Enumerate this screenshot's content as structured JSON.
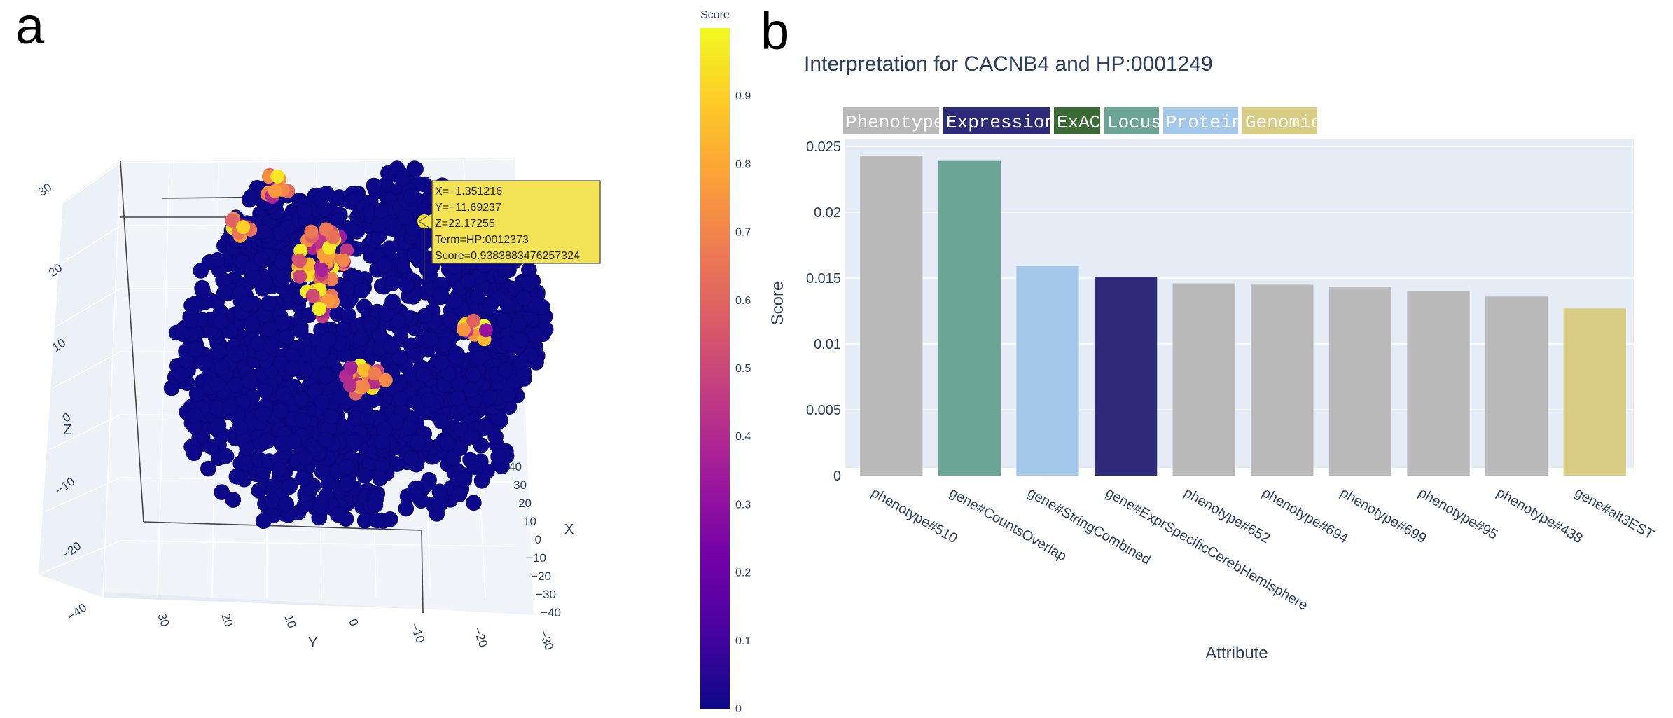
{
  "panel_labels": {
    "a": "a",
    "b": "b"
  },
  "chart_data": [
    {
      "type": "scatter3d",
      "panel": "a",
      "description_axes": {
        "z": {
          "title": "Z",
          "ticks": [
            "30",
            "20",
            "10",
            "0",
            "−10",
            "−20",
            "−40"
          ]
        },
        "y": {
          "title": "Y",
          "ticks": [
            "30",
            "20",
            "10",
            "0",
            "−10",
            "−20",
            "−30"
          ]
        },
        "x": {
          "title": "X",
          "ticks": [
            "40",
            "30",
            "20",
            "10",
            "0",
            "−10",
            "−20",
            "−30",
            "−40"
          ]
        }
      },
      "colorbar": {
        "title": "Score",
        "range": [
          0,
          1
        ],
        "ticks": [
          "0.9",
          "0.8",
          "0.7",
          "0.6",
          "0.5",
          "0.4",
          "0.3",
          "0.2",
          "0.1",
          "0"
        ],
        "colors": [
          "#0d0887",
          "#46039f",
          "#7201a8",
          "#9c179e",
          "#bd3786",
          "#d8576b",
          "#ed7953",
          "#fb9f3a",
          "#fdca26",
          "#f0f921"
        ]
      },
      "hover": {
        "lines": [
          "X=−1.351216",
          "Y=−11.69237",
          "Z=22.17255",
          "Term=HP:0012373",
          "Score=0.9383883476257324"
        ]
      }
    },
    {
      "type": "bar",
      "panel": "b",
      "title": "Interpretation for CACNB4 and HP:0001249",
      "xlabel": "Attribute",
      "ylabel": "Score",
      "ylim": [
        0,
        0.025
      ],
      "yticks": [
        {
          "value": 0,
          "label": "0"
        },
        {
          "value": 0.005,
          "label": "0.005"
        },
        {
          "value": 0.01,
          "label": "0.01"
        },
        {
          "value": 0.015,
          "label": "0.015"
        },
        {
          "value": 0.02,
          "label": "0.02"
        },
        {
          "value": 0.025,
          "label": "0.025"
        }
      ],
      "grid": true,
      "legend_position": "top-left",
      "legend": [
        {
          "name": "Phenotype",
          "color": "#b9b9b9",
          "text_color": "#ffffff"
        },
        {
          "name": "Expression",
          "color": "#2e2a7a",
          "text_color": "#ffffff"
        },
        {
          "name": "ExAC",
          "color": "#3a6b34",
          "text_color": "#ffffff"
        },
        {
          "name": "Locus",
          "color": "#6ba596",
          "text_color": "#ffffff"
        },
        {
          "name": "Protein",
          "color": "#a3c8e9",
          "text_color": "#ffffff"
        },
        {
          "name": "Genomic",
          "color": "#d9cd84",
          "text_color": "#ffffff"
        }
      ],
      "categories": [
        "phenotype#510",
        "gene#CountsOverlap",
        "gene#StringCombined",
        "gene#ExprSpecificCerebHemisphere",
        "phenotype#652",
        "phenotype#694",
        "phenotype#699",
        "phenotype#95",
        "phenotype#438",
        "gene#alt3EST"
      ],
      "values": [
        0.0243,
        0.0239,
        0.0159,
        0.0151,
        0.0146,
        0.0145,
        0.0143,
        0.014,
        0.0136,
        0.0127
      ],
      "bar_colors": [
        "#b9b9b9",
        "#6ba596",
        "#a3c8e9",
        "#2e2a7a",
        "#b9b9b9",
        "#b9b9b9",
        "#b9b9b9",
        "#b9b9b9",
        "#b9b9b9",
        "#d9cd84"
      ]
    }
  ]
}
